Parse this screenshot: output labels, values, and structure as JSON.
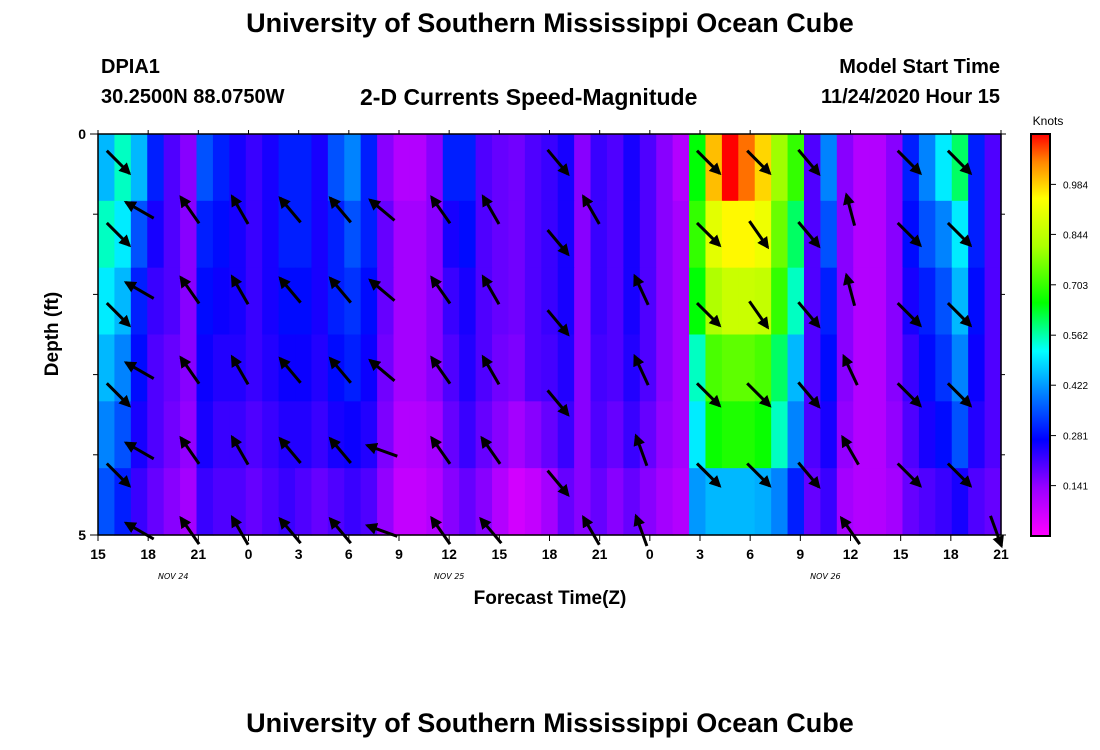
{
  "header": {
    "title": "University of Southern Mississippi Ocean Cube",
    "station_id": "DPIA1",
    "station_coords": "30.2500N 88.0750W",
    "product": "2-D Currents Speed-Magnitude",
    "start_label": "Model Start Time",
    "start_value": "11/24/2020 Hour 15"
  },
  "footer": {
    "title": "University of Southern Mississippi Ocean Cube"
  },
  "chart_data": {
    "type": "heatmap",
    "title": "2-D Currents Speed-Magnitude",
    "xlabel": "Forecast Time(Z)",
    "ylabel": "Depth (ft)",
    "x_range_hours": [
      0,
      54
    ],
    "y_range_ft": [
      0,
      5
    ],
    "x_ticks": [
      {
        "hour": 0,
        "label": "15"
      },
      {
        "hour": 3,
        "label": "18"
      },
      {
        "hour": 6,
        "label": "21"
      },
      {
        "hour": 9,
        "label": "0"
      },
      {
        "hour": 12,
        "label": "3"
      },
      {
        "hour": 15,
        "label": "6"
      },
      {
        "hour": 18,
        "label": "9"
      },
      {
        "hour": 21,
        "label": "12"
      },
      {
        "hour": 24,
        "label": "15"
      },
      {
        "hour": 27,
        "label": "18"
      },
      {
        "hour": 30,
        "label": "21"
      },
      {
        "hour": 33,
        "label": "0"
      },
      {
        "hour": 36,
        "label": "3"
      },
      {
        "hour": 39,
        "label": "6"
      },
      {
        "hour": 42,
        "label": "9"
      },
      {
        "hour": 45,
        "label": "12"
      },
      {
        "hour": 48,
        "label": "15"
      },
      {
        "hour": 51,
        "label": "18"
      },
      {
        "hour": 54,
        "label": "21"
      }
    ],
    "date_labels": [
      {
        "hour": 4.5,
        "label": "NOV  24"
      },
      {
        "hour": 21,
        "label": "NOV  25"
      },
      {
        "hour": 43.5,
        "label": "NOV  26"
      }
    ],
    "y_ticks": [
      {
        "depth": 0,
        "label": "0"
      },
      {
        "depth": 5,
        "label": "5"
      }
    ],
    "y_minor_ticks": [
      1,
      2,
      3,
      4
    ],
    "colorbar": {
      "title": "Knots",
      "min": 0,
      "max": 1.125,
      "ticks": [
        "0.141",
        "0.281",
        "0.422",
        "0.562",
        "0.703",
        "0.844",
        "0.984"
      ]
    },
    "speed_knots_by_depth": [
      [
        0.45,
        0.55,
        0.45,
        0.3,
        0.2,
        0.15,
        0.35,
        0.3,
        0.25,
        0.22,
        0.25,
        0.3,
        0.3,
        0.25,
        0.35,
        0.4,
        0.3,
        0.15,
        0.1,
        0.1,
        0.15,
        0.3,
        0.3,
        0.2,
        0.18,
        0.17,
        0.2,
        0.22,
        0.25,
        0.15,
        0.22,
        0.2,
        0.25,
        0.2,
        0.15,
        0.1,
        0.65,
        1.0,
        1.125,
        1.06,
        0.98,
        0.8,
        0.7,
        0.2,
        0.4,
        0.15,
        0.1,
        0.1,
        0.15,
        0.3,
        0.4,
        0.5,
        0.6,
        0.3,
        0.2
      ],
      [
        0.55,
        0.5,
        0.35,
        0.25,
        0.2,
        0.15,
        0.3,
        0.28,
        0.25,
        0.22,
        0.25,
        0.3,
        0.3,
        0.25,
        0.3,
        0.35,
        0.3,
        0.18,
        0.12,
        0.12,
        0.15,
        0.25,
        0.28,
        0.2,
        0.18,
        0.17,
        0.2,
        0.22,
        0.25,
        0.15,
        0.22,
        0.2,
        0.25,
        0.2,
        0.15,
        0.12,
        0.7,
        0.9,
        0.95,
        0.95,
        0.92,
        0.75,
        0.6,
        0.2,
        0.35,
        0.15,
        0.1,
        0.1,
        0.15,
        0.28,
        0.35,
        0.4,
        0.5,
        0.3,
        0.2
      ],
      [
        0.5,
        0.45,
        0.3,
        0.22,
        0.2,
        0.15,
        0.28,
        0.26,
        0.25,
        0.22,
        0.25,
        0.28,
        0.28,
        0.25,
        0.3,
        0.32,
        0.28,
        0.18,
        0.12,
        0.12,
        0.15,
        0.22,
        0.25,
        0.2,
        0.18,
        0.17,
        0.2,
        0.22,
        0.25,
        0.15,
        0.22,
        0.2,
        0.25,
        0.2,
        0.15,
        0.12,
        0.65,
        0.82,
        0.86,
        0.86,
        0.85,
        0.7,
        0.55,
        0.2,
        0.3,
        0.15,
        0.1,
        0.1,
        0.15,
        0.25,
        0.3,
        0.35,
        0.45,
        0.28,
        0.2
      ],
      [
        0.45,
        0.4,
        0.28,
        0.2,
        0.18,
        0.15,
        0.26,
        0.24,
        0.24,
        0.22,
        0.24,
        0.26,
        0.26,
        0.24,
        0.28,
        0.3,
        0.26,
        0.17,
        0.12,
        0.12,
        0.15,
        0.2,
        0.24,
        0.2,
        0.17,
        0.16,
        0.2,
        0.21,
        0.24,
        0.15,
        0.21,
        0.2,
        0.24,
        0.2,
        0.15,
        0.12,
        0.55,
        0.72,
        0.74,
        0.74,
        0.72,
        0.6,
        0.45,
        0.2,
        0.28,
        0.15,
        0.1,
        0.1,
        0.15,
        0.22,
        0.28,
        0.32,
        0.4,
        0.26,
        0.2
      ],
      [
        0.4,
        0.35,
        0.25,
        0.2,
        0.17,
        0.14,
        0.25,
        0.22,
        0.22,
        0.2,
        0.22,
        0.24,
        0.24,
        0.22,
        0.25,
        0.26,
        0.24,
        0.16,
        0.1,
        0.1,
        0.12,
        0.18,
        0.22,
        0.18,
        0.15,
        0.12,
        0.15,
        0.18,
        0.22,
        0.15,
        0.2,
        0.18,
        0.22,
        0.18,
        0.14,
        0.12,
        0.5,
        0.66,
        0.68,
        0.68,
        0.66,
        0.55,
        0.4,
        0.2,
        0.25,
        0.14,
        0.1,
        0.1,
        0.14,
        0.2,
        0.25,
        0.28,
        0.35,
        0.24,
        0.2
      ],
      [
        0.35,
        0.3,
        0.22,
        0.18,
        0.15,
        0.12,
        0.22,
        0.2,
        0.2,
        0.18,
        0.2,
        0.22,
        0.2,
        0.18,
        0.2,
        0.22,
        0.2,
        0.14,
        0.08,
        0.08,
        0.1,
        0.15,
        0.18,
        0.15,
        0.1,
        0.06,
        0.08,
        0.12,
        0.18,
        0.15,
        0.18,
        0.15,
        0.18,
        0.15,
        0.12,
        0.1,
        0.42,
        0.45,
        0.45,
        0.45,
        0.44,
        0.4,
        0.3,
        0.18,
        0.22,
        0.12,
        0.1,
        0.1,
        0.12,
        0.18,
        0.2,
        0.22,
        0.25,
        0.2,
        0.18
      ]
    ],
    "current_arrows": [
      {
        "hour": 1.2,
        "depth": 0.2,
        "dir_deg": 135
      },
      {
        "hour": 1.2,
        "depth": 1.1,
        "dir_deg": 135
      },
      {
        "hour": 1.2,
        "depth": 2.1,
        "dir_deg": 135
      },
      {
        "hour": 1.2,
        "depth": 3.1,
        "dir_deg": 135
      },
      {
        "hour": 1.2,
        "depth": 4.1,
        "dir_deg": 135
      },
      {
        "hour": 2.5,
        "depth": 0.8,
        "dir_deg": 300
      },
      {
        "hour": 2.5,
        "depth": 1.8,
        "dir_deg": 300
      },
      {
        "hour": 2.5,
        "depth": 2.8,
        "dir_deg": 300
      },
      {
        "hour": 2.5,
        "depth": 3.8,
        "dir_deg": 300
      },
      {
        "hour": 2.5,
        "depth": 4.8,
        "dir_deg": 300
      },
      {
        "hour": 5.5,
        "depth": 0.8,
        "dir_deg": 325
      },
      {
        "hour": 5.5,
        "depth": 1.8,
        "dir_deg": 325
      },
      {
        "hour": 5.5,
        "depth": 2.8,
        "dir_deg": 325
      },
      {
        "hour": 5.5,
        "depth": 3.8,
        "dir_deg": 325
      },
      {
        "hour": 5.5,
        "depth": 4.8,
        "dir_deg": 325
      },
      {
        "hour": 8.5,
        "depth": 0.8,
        "dir_deg": 330
      },
      {
        "hour": 8.5,
        "depth": 1.8,
        "dir_deg": 330
      },
      {
        "hour": 8.5,
        "depth": 2.8,
        "dir_deg": 330
      },
      {
        "hour": 8.5,
        "depth": 3.8,
        "dir_deg": 330
      },
      {
        "hour": 8.5,
        "depth": 4.8,
        "dir_deg": 330
      },
      {
        "hour": 11.5,
        "depth": 0.8,
        "dir_deg": 320
      },
      {
        "hour": 11.5,
        "depth": 1.8,
        "dir_deg": 320
      },
      {
        "hour": 11.5,
        "depth": 2.8,
        "dir_deg": 320
      },
      {
        "hour": 11.5,
        "depth": 3.8,
        "dir_deg": 320
      },
      {
        "hour": 11.5,
        "depth": 4.8,
        "dir_deg": 320
      },
      {
        "hour": 14.5,
        "depth": 0.8,
        "dir_deg": 320
      },
      {
        "hour": 14.5,
        "depth": 1.8,
        "dir_deg": 320
      },
      {
        "hour": 14.5,
        "depth": 2.8,
        "dir_deg": 320
      },
      {
        "hour": 14.5,
        "depth": 3.8,
        "dir_deg": 320
      },
      {
        "hour": 14.5,
        "depth": 4.8,
        "dir_deg": 320
      },
      {
        "hour": 17,
        "depth": 0.8,
        "dir_deg": 310
      },
      {
        "hour": 17,
        "depth": 1.8,
        "dir_deg": 310
      },
      {
        "hour": 17,
        "depth": 2.8,
        "dir_deg": 310
      },
      {
        "hour": 17,
        "depth": 3.8,
        "dir_deg": 290
      },
      {
        "hour": 17,
        "depth": 4.8,
        "dir_deg": 290
      },
      {
        "hour": 20.5,
        "depth": 0.8,
        "dir_deg": 325
      },
      {
        "hour": 20.5,
        "depth": 1.8,
        "dir_deg": 325
      },
      {
        "hour": 20.5,
        "depth": 2.8,
        "dir_deg": 325
      },
      {
        "hour": 20.5,
        "depth": 3.8,
        "dir_deg": 325
      },
      {
        "hour": 20.5,
        "depth": 4.8,
        "dir_deg": 325
      },
      {
        "hour": 23.5,
        "depth": 0.8,
        "dir_deg": 330
      },
      {
        "hour": 23.5,
        "depth": 1.8,
        "dir_deg": 330
      },
      {
        "hour": 23.5,
        "depth": 2.8,
        "dir_deg": 330
      },
      {
        "hour": 23.5,
        "depth": 3.8,
        "dir_deg": 325
      },
      {
        "hour": 23.5,
        "depth": 4.8,
        "dir_deg": 320
      },
      {
        "hour": 27.5,
        "depth": 0.2,
        "dir_deg": 140
      },
      {
        "hour": 27.5,
        "depth": 1.2,
        "dir_deg": 140
      },
      {
        "hour": 27.5,
        "depth": 2.2,
        "dir_deg": 140
      },
      {
        "hour": 27.5,
        "depth": 3.2,
        "dir_deg": 140
      },
      {
        "hour": 27.5,
        "depth": 4.2,
        "dir_deg": 140
      },
      {
        "hour": 29.5,
        "depth": 0.8,
        "dir_deg": 330
      },
      {
        "hour": 29.5,
        "depth": 4.8,
        "dir_deg": 330
      },
      {
        "hour": 32.5,
        "depth": 1.8,
        "dir_deg": 335
      },
      {
        "hour": 32.5,
        "depth": 2.8,
        "dir_deg": 335
      },
      {
        "hour": 32.5,
        "depth": 3.8,
        "dir_deg": 340
      },
      {
        "hour": 32.5,
        "depth": 4.8,
        "dir_deg": 340
      },
      {
        "hour": 36.5,
        "depth": 0.2,
        "dir_deg": 135
      },
      {
        "hour": 36.5,
        "depth": 1.1,
        "dir_deg": 135
      },
      {
        "hour": 36.5,
        "depth": 2.1,
        "dir_deg": 135
      },
      {
        "hour": 36.5,
        "depth": 3.1,
        "dir_deg": 135
      },
      {
        "hour": 36.5,
        "depth": 4.1,
        "dir_deg": 135
      },
      {
        "hour": 39.5,
        "depth": 0.2,
        "dir_deg": 135
      },
      {
        "hour": 39.5,
        "depth": 1.1,
        "dir_deg": 145
      },
      {
        "hour": 39.5,
        "depth": 2.1,
        "dir_deg": 145
      },
      {
        "hour": 39.5,
        "depth": 3.1,
        "dir_deg": 135
      },
      {
        "hour": 39.5,
        "depth": 4.1,
        "dir_deg": 135
      },
      {
        "hour": 42.5,
        "depth": 0.2,
        "dir_deg": 140
      },
      {
        "hour": 42.5,
        "depth": 1.1,
        "dir_deg": 140
      },
      {
        "hour": 42.5,
        "depth": 2.1,
        "dir_deg": 140
      },
      {
        "hour": 42.5,
        "depth": 3.1,
        "dir_deg": 140
      },
      {
        "hour": 42.5,
        "depth": 4.1,
        "dir_deg": 140
      },
      {
        "hour": 45,
        "depth": 0.8,
        "dir_deg": 345
      },
      {
        "hour": 45,
        "depth": 1.8,
        "dir_deg": 345
      },
      {
        "hour": 45,
        "depth": 2.8,
        "dir_deg": 335
      },
      {
        "hour": 45,
        "depth": 3.8,
        "dir_deg": 330
      },
      {
        "hour": 45,
        "depth": 4.8,
        "dir_deg": 325
      },
      {
        "hour": 48.5,
        "depth": 0.2,
        "dir_deg": 135
      },
      {
        "hour": 48.5,
        "depth": 1.1,
        "dir_deg": 135
      },
      {
        "hour": 48.5,
        "depth": 2.1,
        "dir_deg": 135
      },
      {
        "hour": 48.5,
        "depth": 3.1,
        "dir_deg": 135
      },
      {
        "hour": 48.5,
        "depth": 4.1,
        "dir_deg": 135
      },
      {
        "hour": 51.5,
        "depth": 0.2,
        "dir_deg": 135
      },
      {
        "hour": 51.5,
        "depth": 1.1,
        "dir_deg": 135
      },
      {
        "hour": 51.5,
        "depth": 2.1,
        "dir_deg": 135
      },
      {
        "hour": 51.5,
        "depth": 3.1,
        "dir_deg": 135
      },
      {
        "hour": 51.5,
        "depth": 4.1,
        "dir_deg": 135
      },
      {
        "hour": 53.7,
        "depth": 4.8,
        "dir_deg": 160
      }
    ]
  }
}
